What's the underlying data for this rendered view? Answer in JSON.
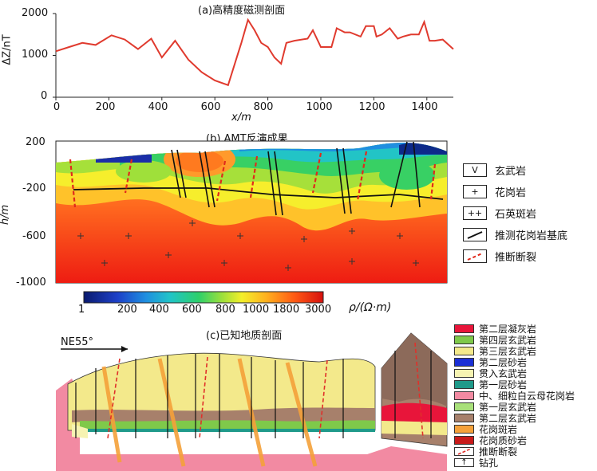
{
  "panel_a": {
    "title": "(a)高精度磁测剖面",
    "ylabel": "ΔZ/nT",
    "xlabel": "x/m",
    "y_ticks": [
      "2000",
      "1000",
      "0"
    ],
    "x_ticks": [
      "0",
      "200",
      "400",
      "600",
      "800",
      "1000",
      "1200",
      "1400"
    ]
  },
  "chart_data": {
    "type": "line",
    "title": "(a)高精度磁测剖面",
    "xlabel": "x/m",
    "ylabel": "ΔZ/nT",
    "xlim": [
      0,
      1500
    ],
    "ylim": [
      0,
      2000
    ],
    "series": [
      {
        "name": "ΔZ",
        "color": "#e03a2e",
        "x": [
          0,
          50,
          100,
          150,
          210,
          260,
          310,
          360,
          400,
          450,
          500,
          550,
          600,
          650,
          680,
          700,
          725,
          750,
          775,
          800,
          825,
          850,
          870,
          900,
          950,
          970,
          1000,
          1040,
          1060,
          1090,
          1110,
          1150,
          1170,
          1200,
          1210,
          1230,
          1260,
          1290,
          1310,
          1340,
          1370,
          1390,
          1410,
          1430,
          1460,
          1500
        ],
        "y": [
          1100,
          1200,
          1300,
          1250,
          1480,
          1380,
          1150,
          1400,
          950,
          1350,
          900,
          600,
          400,
          290,
          900,
          1300,
          1850,
          1600,
          1300,
          1200,
          950,
          800,
          1300,
          1350,
          1400,
          1600,
          1200,
          1200,
          1650,
          1550,
          1550,
          1450,
          1700,
          1700,
          1450,
          1500,
          1650,
          1400,
          1450,
          1500,
          1500,
          1800,
          1350,
          1350,
          1380,
          1150
        ]
      }
    ]
  },
  "panel_b": {
    "title": "(b) AMT反演成果",
    "ylabel": "h/m",
    "y_ticks": [
      "200",
      "-200",
      "-600",
      "-1000"
    ],
    "colorbar_ticks": [
      "1",
      "200",
      "400",
      "600",
      "800",
      "1000",
      "1800",
      "3000"
    ],
    "colorbar_label": "ρ/(Ω·m)",
    "legend": [
      {
        "symbol": "V",
        "label": "玄武岩"
      },
      {
        "symbol": "+",
        "label": "花岗岩"
      },
      {
        "symbol": "++",
        "label": "石英斑岩"
      },
      {
        "symbol": "",
        "label": "推测花岗岩基底"
      },
      {
        "symbol": "",
        "label": "推断断裂"
      }
    ]
  },
  "panel_c": {
    "title": "(c)已知地质剖面",
    "direction": "NE55°",
    "legend": [
      {
        "label": "第二层凝灰岩",
        "color": "#e8153a"
      },
      {
        "label": "第四层玄武岩",
        "color": "#7fc94a"
      },
      {
        "label": "第三层玄武岩",
        "color": "#f3e98b"
      },
      {
        "label": "第二层砂岩",
        "color": "#1b2fd6"
      },
      {
        "label": "贯入玄武岩",
        "color": "#f6f3b2"
      },
      {
        "label": "第一层砂岩",
        "color": "#1f9a8a"
      },
      {
        "label": "中、细粒白云母花岗岩",
        "color": "#f28aa2"
      },
      {
        "label": "第一层玄武岩",
        "color": "#a8e07a"
      },
      {
        "label": "第二层玄武岩",
        "color": "#a7806b"
      },
      {
        "label": "花岗斑岩",
        "color": "#f5a13a"
      },
      {
        "label": "花岗质砂岩",
        "color": "#c81a1a"
      },
      {
        "label": "推断断裂",
        "color": "#e0302a"
      },
      {
        "label": "钻孔",
        "color": "#111111"
      }
    ]
  }
}
